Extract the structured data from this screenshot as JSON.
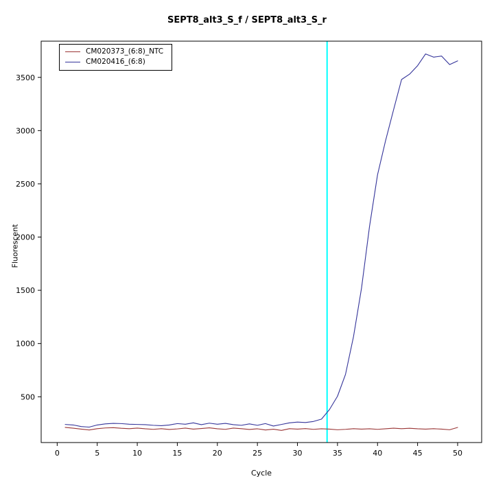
{
  "figure": {
    "background": "#ffffff"
  },
  "chart_data": {
    "type": "line",
    "title": "SEPT8_alt3_S_f / SEPT8_alt3_S_r",
    "xlabel": "Cycle",
    "ylabel": "Fluorescent",
    "xlim": [
      -2,
      53
    ],
    "ylim": [
      70,
      3840
    ],
    "xticks": [
      0,
      5,
      10,
      15,
      20,
      25,
      30,
      35,
      40,
      45,
      50
    ],
    "yticks": [
      500,
      1000,
      1500,
      2000,
      2500,
      3000,
      3500
    ],
    "grid": false,
    "legend_position": "top-left",
    "threshold_line": {
      "x": 33.7,
      "color": "#00ffff"
    },
    "x": [
      1,
      2,
      3,
      4,
      5,
      6,
      7,
      8,
      9,
      10,
      11,
      12,
      13,
      14,
      15,
      16,
      17,
      18,
      19,
      20,
      21,
      22,
      23,
      24,
      25,
      26,
      27,
      28,
      29,
      30,
      31,
      32,
      33,
      34,
      35,
      36,
      37,
      38,
      39,
      40,
      41,
      42,
      43,
      44,
      45,
      46,
      47,
      48,
      49,
      50
    ],
    "series": [
      {
        "name": "CM020373_(6:8)_NTC",
        "color": "#993333",
        "values": [
          212,
          205,
          196,
          188,
          200,
          207,
          210,
          204,
          200,
          206,
          199,
          194,
          200,
          193,
          198,
          206,
          196,
          202,
          208,
          199,
          194,
          206,
          200,
          193,
          199,
          188,
          195,
          184,
          200,
          196,
          201,
          194,
          199,
          196,
          190,
          194,
          200,
          196,
          199,
          194,
          199,
          205,
          200,
          204,
          199,
          196,
          200,
          196,
          190,
          212
        ]
      },
      {
        "name": "CM020416_(6:8)",
        "color": "#333399",
        "values": [
          240,
          235,
          220,
          215,
          235,
          245,
          250,
          248,
          242,
          240,
          238,
          232,
          228,
          235,
          248,
          242,
          255,
          238,
          252,
          242,
          250,
          238,
          232,
          245,
          232,
          248,
          225,
          240,
          255,
          262,
          258,
          268,
          290,
          380,
          505,
          710,
          1065,
          1520,
          2100,
          2585,
          2905,
          3195,
          3480,
          3530,
          3610,
          3720,
          3690,
          3700,
          3620,
          3655
        ]
      }
    ]
  }
}
